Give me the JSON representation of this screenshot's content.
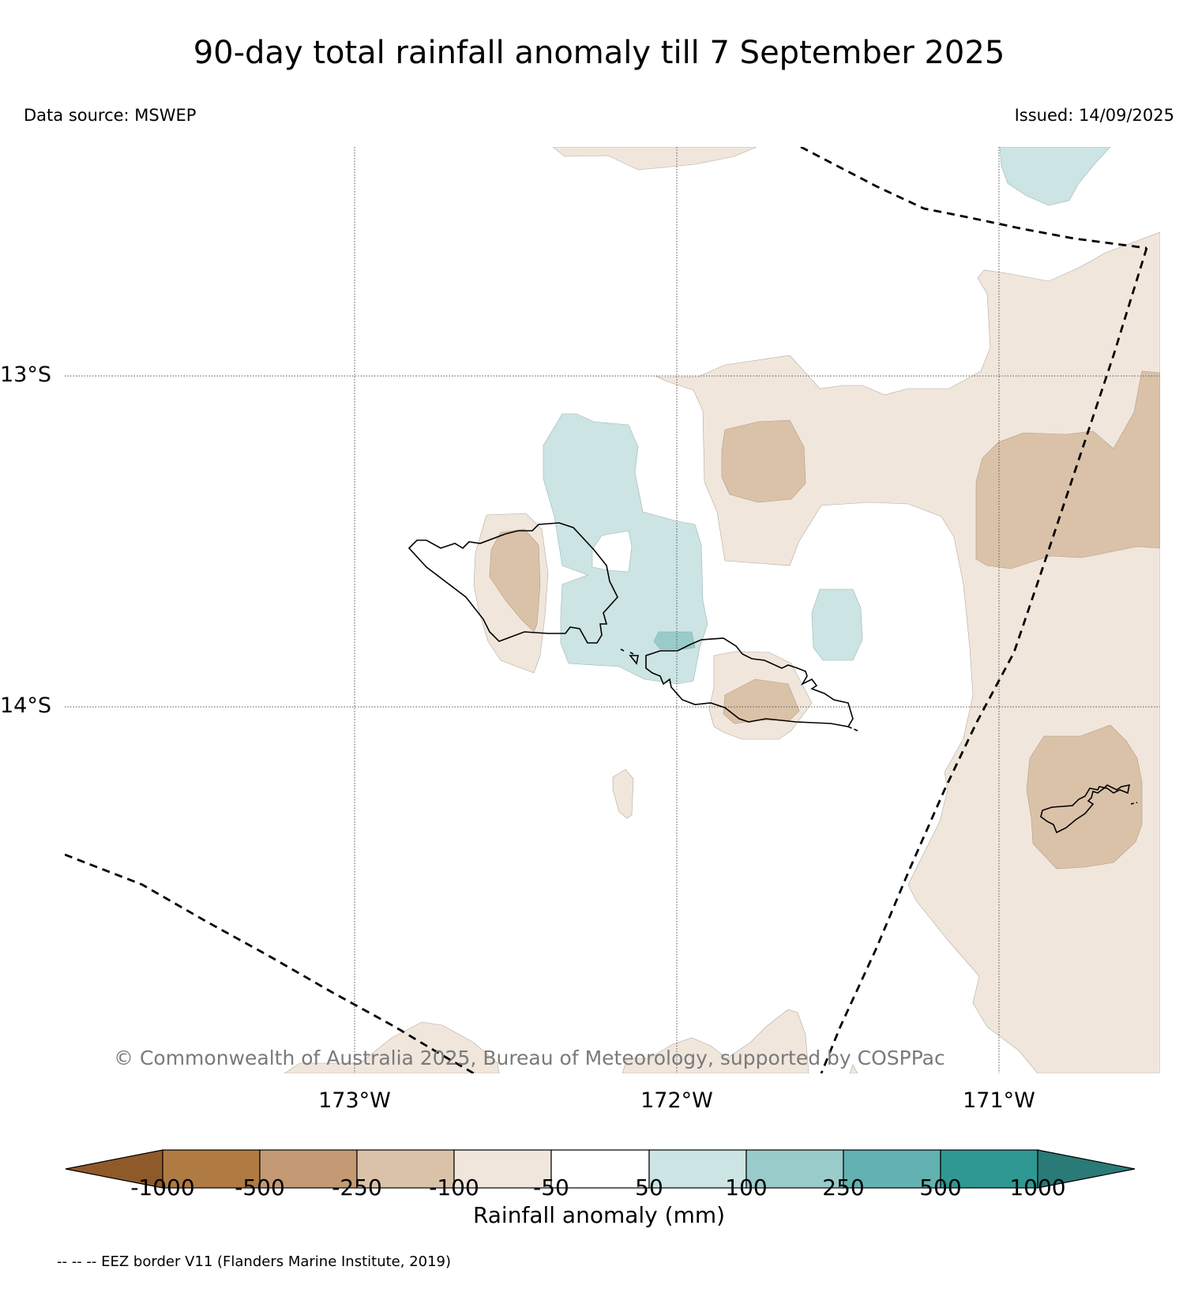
{
  "title": "90-day total rainfall anomaly till 7 September 2025",
  "data_source": "Data source: MSWEP",
  "issued": "Issued: 14/09/2025",
  "copyright": "© Commonwealth of Australia 2025, Bureau of Meteorology, supported by COSPPac",
  "map": {
    "lat_labels": [
      "13°S",
      "14°S"
    ],
    "lon_labels": [
      "173°W",
      "172°W",
      "171°W"
    ]
  },
  "colorbar": {
    "label": "Rainfall anomaly (mm)",
    "ticks": [
      "-1000",
      "-500",
      "-250",
      "-100",
      "-50",
      "50",
      "100",
      "250",
      "500",
      "1000"
    ],
    "colors": {
      "below_-1000": "#8f5a2a",
      "-1000_-500": "#b07a43",
      "-500_-250": "#c39a73",
      "-250_-100": "#dac2a9",
      "-100_-50": "#f0e6dc",
      "-50_50": "#ffffff",
      "50_100": "#cce4e3",
      "100_250": "#99cbca",
      "250_500": "#63b1b0",
      "500_1000": "#2f9893",
      "above_1000": "#2a7a78"
    }
  },
  "legend_note": "-- -- -- EEZ border V11 (Flanders Marine Institute, 2019)"
}
